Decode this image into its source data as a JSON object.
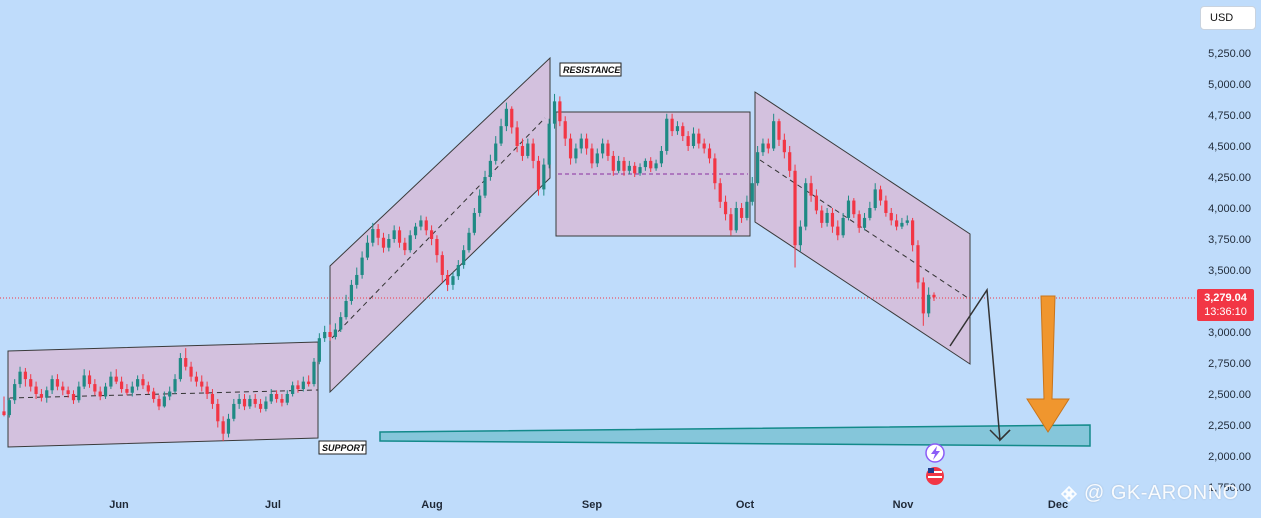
{
  "currency_button": "USD",
  "price_badge": {
    "price": "3,279.04",
    "countdown": "13:36:10"
  },
  "watermark": {
    "icon": "binance-logo-icon",
    "text": "@ GK-ARONNO"
  },
  "annotations": {
    "resistance": "RESISTANCE",
    "support": "SUPPORT"
  },
  "colors": {
    "background": "#bfdcfb",
    "up": "#1f8a84",
    "down": "#f23645",
    "channel_fill": "#d9b8d4",
    "support_fill": "#5fb7c4",
    "arrow": "#f0962e"
  },
  "chart_data": {
    "type": "candlestick",
    "title": "",
    "xlabel": "",
    "ylabel": "",
    "y_ticks": [
      "5,250.00",
      "5,000.00",
      "4,750.00",
      "4,500.00",
      "4,250.00",
      "4,000.00",
      "3,750.00",
      "3,500.00",
      "3,250.00",
      "3,000.00",
      "2,750.00",
      "2,500.00",
      "2,250.00",
      "2,000.00",
      "1,750.00"
    ],
    "x_ticks": [
      "Jun",
      "Jul",
      "Aug",
      "Sep",
      "Oct",
      "Nov",
      "Dec"
    ],
    "ylim": [
      1750,
      5350
    ],
    "last_price": 3279.04,
    "grid": false,
    "candles": [
      [
        2360,
        2330,
        2480,
        2320
      ],
      [
        2330,
        2450,
        2470,
        2310
      ],
      [
        2450,
        2580,
        2620,
        2420
      ],
      [
        2580,
        2680,
        2720,
        2550
      ],
      [
        2680,
        2620,
        2710,
        2560
      ],
      [
        2620,
        2560,
        2660,
        2520
      ],
      [
        2560,
        2500,
        2600,
        2460
      ],
      [
        2500,
        2470,
        2540,
        2440
      ],
      [
        2470,
        2530,
        2560,
        2430
      ],
      [
        2530,
        2620,
        2650,
        2500
      ],
      [
        2620,
        2560,
        2660,
        2530
      ],
      [
        2560,
        2530,
        2600,
        2490
      ],
      [
        2530,
        2500,
        2560,
        2470
      ],
      [
        2500,
        2450,
        2530,
        2420
      ],
      [
        2450,
        2560,
        2600,
        2430
      ],
      [
        2560,
        2650,
        2700,
        2540
      ],
      [
        2650,
        2580,
        2690,
        2550
      ],
      [
        2580,
        2520,
        2620,
        2490
      ],
      [
        2520,
        2480,
        2560,
        2450
      ],
      [
        2480,
        2560,
        2590,
        2460
      ],
      [
        2560,
        2640,
        2680,
        2540
      ],
      [
        2640,
        2600,
        2700,
        2580
      ],
      [
        2600,
        2540,
        2640,
        2510
      ],
      [
        2540,
        2510,
        2580,
        2490
      ],
      [
        2510,
        2560,
        2600,
        2480
      ],
      [
        2560,
        2620,
        2650,
        2530
      ],
      [
        2620,
        2570,
        2660,
        2540
      ],
      [
        2570,
        2520,
        2600,
        2500
      ],
      [
        2520,
        2460,
        2550,
        2430
      ],
      [
        2460,
        2400,
        2490,
        2370
      ],
      [
        2400,
        2480,
        2520,
        2390
      ],
      [
        2480,
        2520,
        2560,
        2450
      ],
      [
        2520,
        2620,
        2660,
        2500
      ],
      [
        2620,
        2790,
        2830,
        2600
      ],
      [
        2790,
        2720,
        2870,
        2690
      ],
      [
        2720,
        2640,
        2760,
        2600
      ],
      [
        2640,
        2600,
        2680,
        2560
      ],
      [
        2600,
        2560,
        2650,
        2520
      ],
      [
        2560,
        2500,
        2600,
        2460
      ],
      [
        2500,
        2420,
        2540,
        2380
      ],
      [
        2420,
        2280,
        2460,
        2230
      ],
      [
        2280,
        2180,
        2320,
        2120
      ],
      [
        2180,
        2300,
        2340,
        2150
      ],
      [
        2300,
        2420,
        2460,
        2280
      ],
      [
        2420,
        2460,
        2500,
        2380
      ],
      [
        2460,
        2400,
        2500,
        2370
      ],
      [
        2400,
        2460,
        2490,
        2380
      ],
      [
        2460,
        2420,
        2500,
        2390
      ],
      [
        2420,
        2380,
        2460,
        2350
      ],
      [
        2380,
        2440,
        2480,
        2360
      ],
      [
        2440,
        2500,
        2540,
        2420
      ],
      [
        2500,
        2460,
        2530,
        2430
      ],
      [
        2460,
        2430,
        2500,
        2400
      ],
      [
        2430,
        2500,
        2530,
        2410
      ],
      [
        2500,
        2570,
        2600,
        2480
      ],
      [
        2570,
        2540,
        2610,
        2510
      ],
      [
        2540,
        2600,
        2640,
        2520
      ],
      [
        2600,
        2580,
        2650,
        2560
      ],
      [
        2580,
        2760,
        2790,
        2560
      ],
      [
        2760,
        2950,
        2990,
        2740
      ],
      [
        2950,
        3000,
        3050,
        2920
      ],
      [
        3000,
        2960,
        3060,
        2930
      ],
      [
        2960,
        3020,
        3070,
        2940
      ],
      [
        3020,
        3120,
        3160,
        3000
      ],
      [
        3120,
        3250,
        3300,
        3100
      ],
      [
        3250,
        3380,
        3420,
        3220
      ],
      [
        3380,
        3460,
        3520,
        3350
      ],
      [
        3460,
        3600,
        3650,
        3430
      ],
      [
        3600,
        3720,
        3780,
        3580
      ],
      [
        3720,
        3830,
        3880,
        3690
      ],
      [
        3830,
        3760,
        3870,
        3700
      ],
      [
        3760,
        3680,
        3800,
        3640
      ],
      [
        3680,
        3750,
        3790,
        3650
      ],
      [
        3750,
        3820,
        3860,
        3720
      ],
      [
        3820,
        3720,
        3850,
        3680
      ],
      [
        3720,
        3660,
        3760,
        3620
      ],
      [
        3660,
        3780,
        3820,
        3640
      ],
      [
        3780,
        3850,
        3880,
        3750
      ],
      [
        3850,
        3900,
        3940,
        3820
      ],
      [
        3900,
        3820,
        3930,
        3780
      ],
      [
        3820,
        3750,
        3860,
        3700
      ],
      [
        3750,
        3620,
        3780,
        3560
      ],
      [
        3620,
        3460,
        3650,
        3400
      ],
      [
        3460,
        3380,
        3500,
        3330
      ],
      [
        3380,
        3450,
        3480,
        3340
      ],
      [
        3450,
        3540,
        3580,
        3420
      ],
      [
        3540,
        3660,
        3700,
        3510
      ],
      [
        3660,
        3800,
        3840,
        3640
      ],
      [
        3800,
        3960,
        4000,
        3780
      ],
      [
        3960,
        4100,
        4150,
        3930
      ],
      [
        4100,
        4250,
        4300,
        4080
      ],
      [
        4250,
        4380,
        4430,
        4220
      ],
      [
        4380,
        4520,
        4580,
        4350
      ],
      [
        4520,
        4660,
        4720,
        4500
      ],
      [
        4660,
        4800,
        4850,
        4620
      ],
      [
        4800,
        4650,
        4820,
        4600
      ],
      [
        4650,
        4500,
        4700,
        4450
      ],
      [
        4500,
        4420,
        4560,
        4380
      ],
      [
        4420,
        4520,
        4560,
        4400
      ],
      [
        4520,
        4380,
        4560,
        4320
      ],
      [
        4380,
        4150,
        4420,
        4100
      ],
      [
        4150,
        4350,
        4400,
        4100
      ],
      [
        4350,
        4680,
        4720,
        4320
      ],
      [
        4680,
        4860,
        4920,
        4640
      ],
      [
        4860,
        4700,
        4900,
        4660
      ],
      [
        4700,
        4560,
        4740,
        4500
      ],
      [
        4560,
        4400,
        4600,
        4350
      ],
      [
        4400,
        4480,
        4520,
        4360
      ],
      [
        4480,
        4560,
        4600,
        4440
      ],
      [
        4560,
        4480,
        4600,
        4430
      ],
      [
        4480,
        4360,
        4520,
        4320
      ],
      [
        4360,
        4440,
        4480,
        4330
      ],
      [
        4440,
        4520,
        4560,
        4400
      ],
      [
        4520,
        4420,
        4550,
        4380
      ],
      [
        4420,
        4300,
        4460,
        4260
      ],
      [
        4300,
        4380,
        4420,
        4280
      ],
      [
        4380,
        4300,
        4410,
        4260
      ],
      [
        4300,
        4340,
        4380,
        4270
      ],
      [
        4340,
        4280,
        4370,
        4250
      ],
      [
        4280,
        4330,
        4360,
        4260
      ],
      [
        4330,
        4380,
        4400,
        4300
      ],
      [
        4380,
        4320,
        4410,
        4290
      ],
      [
        4320,
        4360,
        4390,
        4300
      ],
      [
        4360,
        4460,
        4500,
        4330
      ],
      [
        4460,
        4720,
        4760,
        4430
      ],
      [
        4720,
        4620,
        4760,
        4580
      ],
      [
        4620,
        4660,
        4700,
        4590
      ],
      [
        4660,
        4580,
        4690,
        4540
      ],
      [
        4580,
        4500,
        4620,
        4460
      ],
      [
        4500,
        4600,
        4650,
        4480
      ],
      [
        4600,
        4520,
        4640,
        4480
      ],
      [
        4520,
        4480,
        4560,
        4440
      ],
      [
        4480,
        4400,
        4520,
        4360
      ],
      [
        4400,
        4200,
        4440,
        4150
      ],
      [
        4200,
        4050,
        4240,
        4000
      ],
      [
        4050,
        3950,
        4100,
        3900
      ],
      [
        3950,
        3820,
        4000,
        3780
      ],
      [
        3820,
        4000,
        4050,
        3800
      ],
      [
        4000,
        3920,
        4040,
        3880
      ],
      [
        3920,
        4050,
        4100,
        3900
      ],
      [
        4050,
        4200,
        4250,
        4020
      ],
      [
        4200,
        4450,
        4500,
        4180
      ],
      [
        4450,
        4520,
        4560,
        4420
      ],
      [
        4520,
        4480,
        4560,
        4440
      ],
      [
        4480,
        4700,
        4760,
        4460
      ],
      [
        4700,
        4550,
        4720,
        4500
      ],
      [
        4550,
        4450,
        4600,
        4400
      ],
      [
        4450,
        4300,
        4500,
        4250
      ],
      [
        4300,
        3700,
        4350,
        3520
      ],
      [
        3700,
        3850,
        3900,
        3650
      ],
      [
        3850,
        4200,
        4240,
        3820
      ],
      [
        4200,
        4100,
        4260,
        4050
      ],
      [
        4100,
        3980,
        4150,
        3950
      ],
      [
        3980,
        3880,
        4020,
        3840
      ],
      [
        3880,
        3960,
        4000,
        3850
      ],
      [
        3960,
        3850,
        4000,
        3800
      ],
      [
        3850,
        3780,
        3900,
        3740
      ],
      [
        3780,
        3920,
        3960,
        3760
      ],
      [
        3920,
        4060,
        4100,
        3900
      ],
      [
        4060,
        3950,
        4080,
        3920
      ],
      [
        3950,
        3840,
        3980,
        3800
      ],
      [
        3840,
        3920,
        3960,
        3820
      ],
      [
        3920,
        4000,
        4050,
        3900
      ],
      [
        4000,
        4150,
        4200,
        3980
      ],
      [
        4150,
        4060,
        4180,
        4020
      ],
      [
        4060,
        3960,
        4100,
        3930
      ],
      [
        3960,
        3900,
        4000,
        3860
      ],
      [
        3900,
        3850,
        3950,
        3820
      ],
      [
        3850,
        3880,
        3920,
        3830
      ],
      [
        3880,
        3900,
        3940,
        3860
      ],
      [
        3900,
        3700,
        3920,
        3650
      ],
      [
        3700,
        3400,
        3740,
        3350
      ],
      [
        3400,
        3150,
        3440,
        3050
      ],
      [
        3150,
        3300,
        3360,
        3120
      ],
      [
        3300,
        3279,
        3320,
        3250
      ]
    ]
  }
}
